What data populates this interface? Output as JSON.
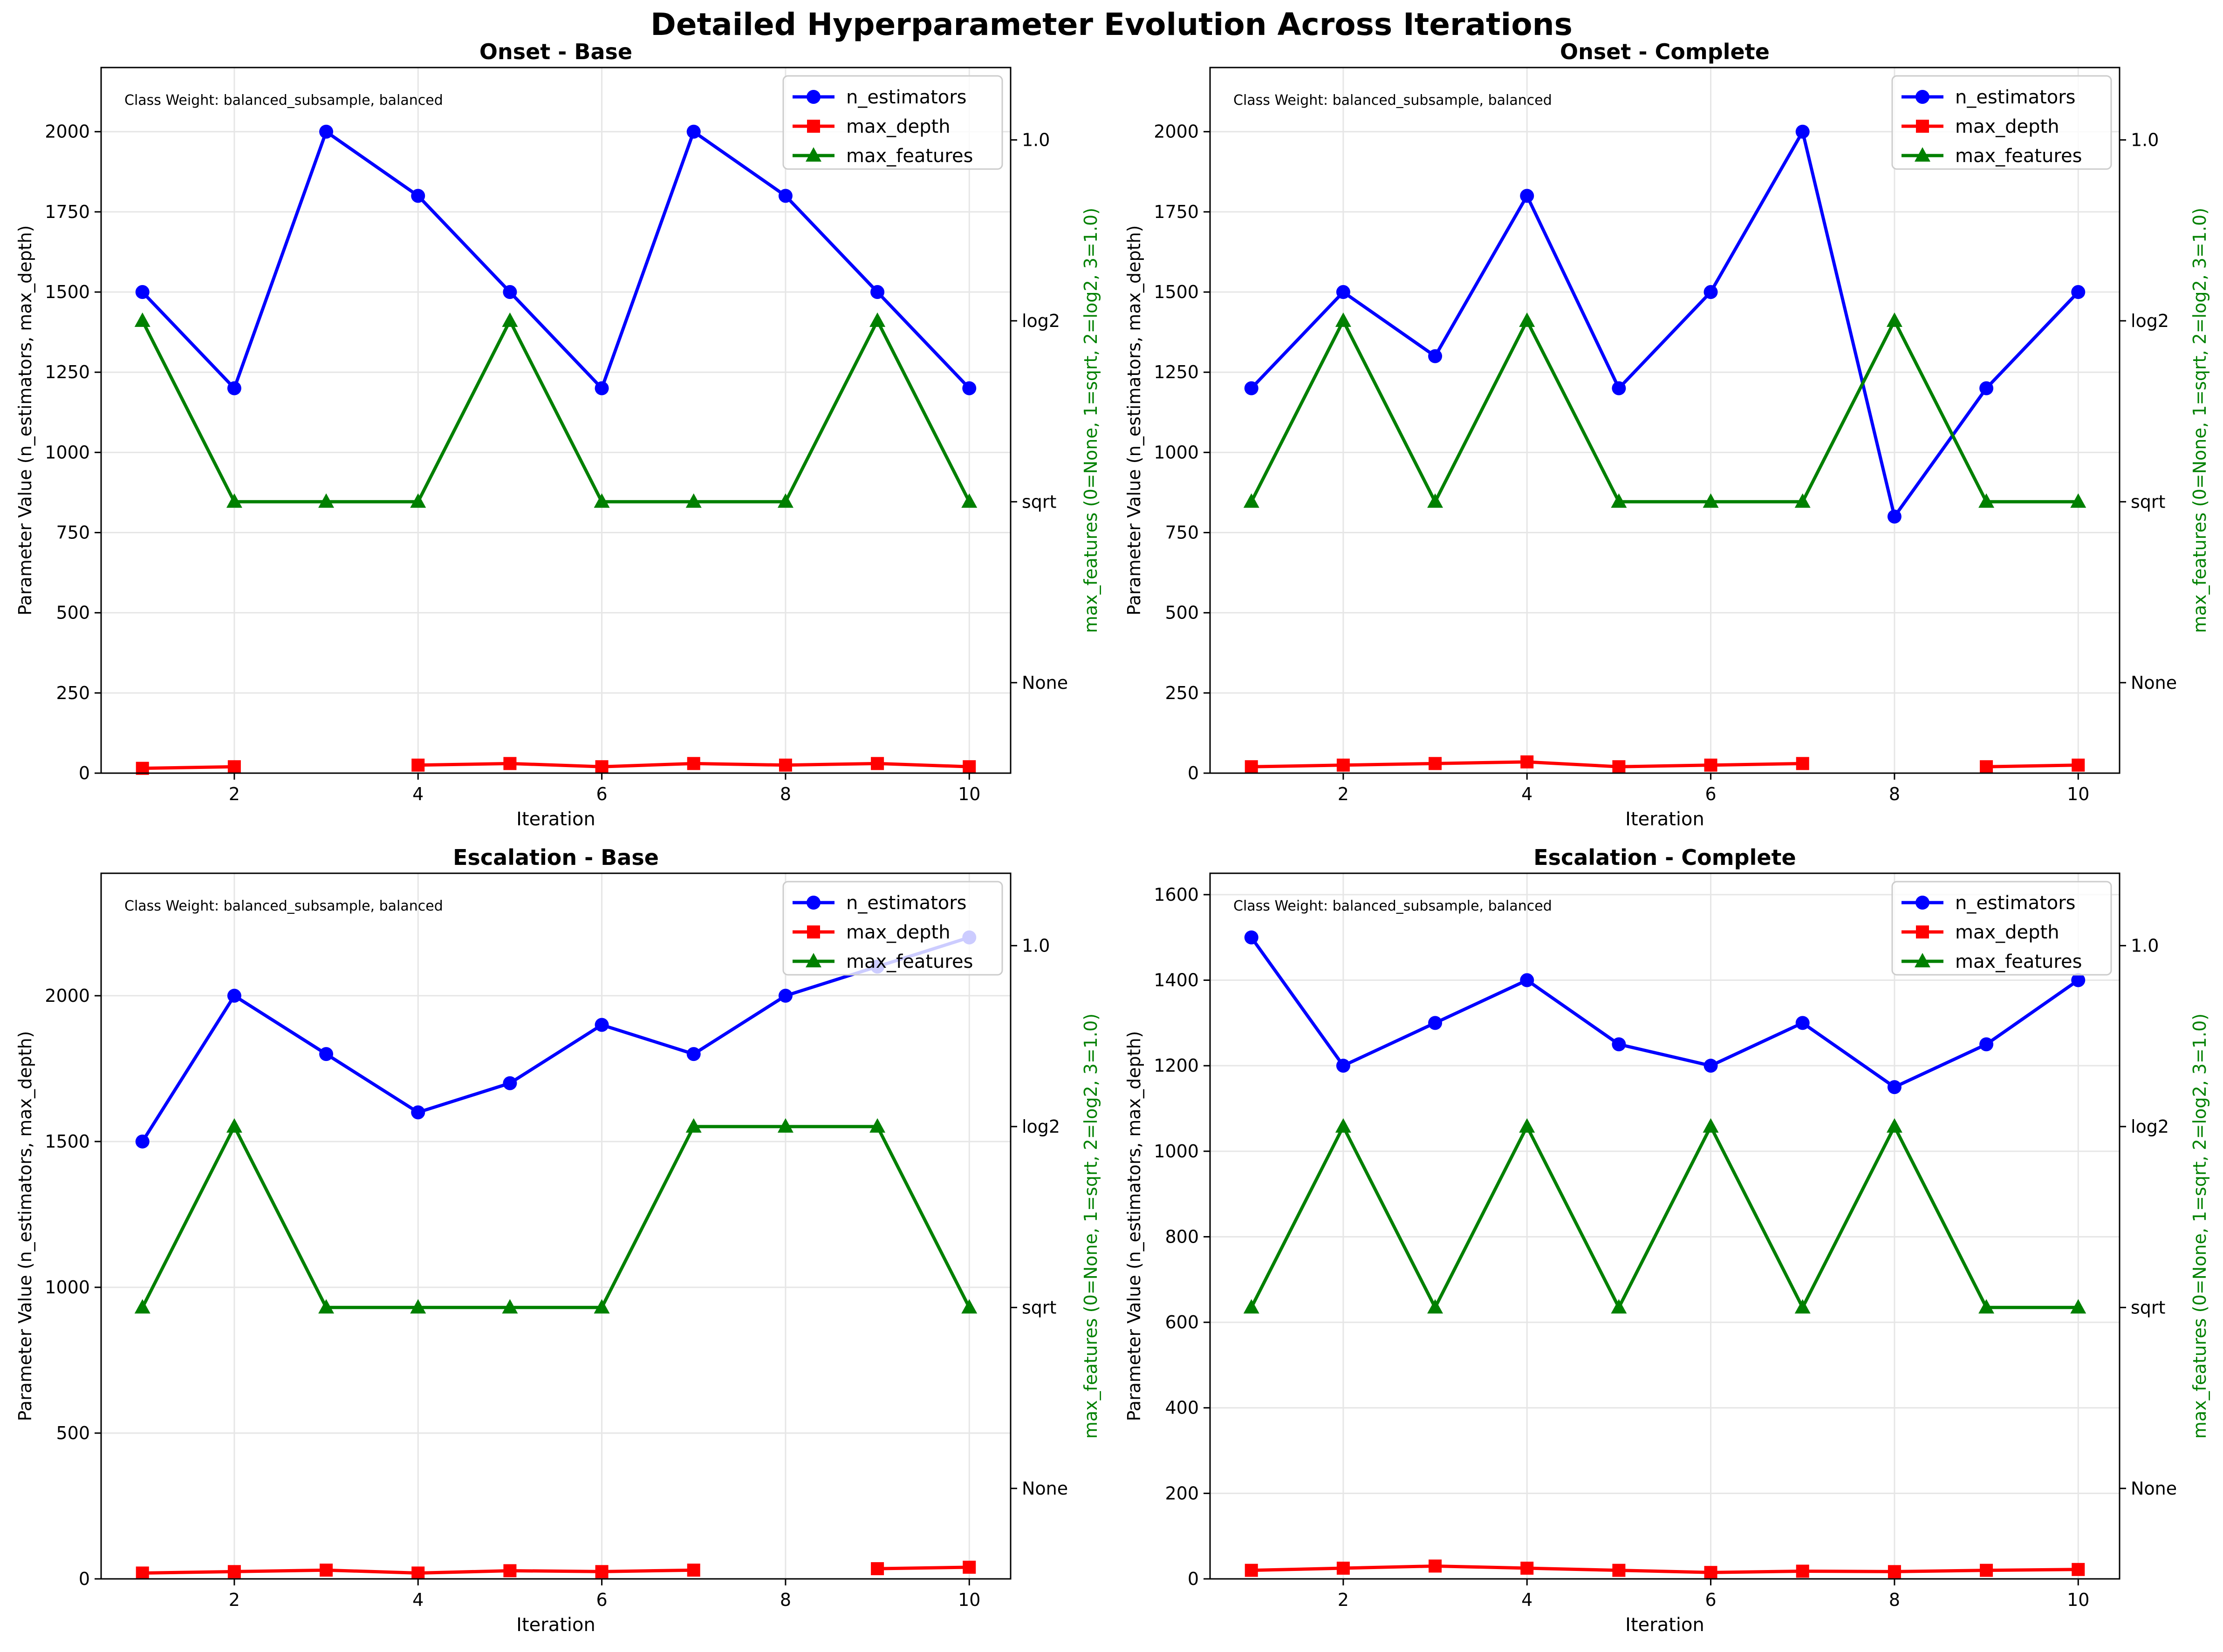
{
  "figure": {
    "title": "Detailed Hyperparameter Evolution Across Iterations"
  },
  "colors": {
    "n_estimators": "#0000ff",
    "max_depth": "#ff0000",
    "max_features": "#008000",
    "grid": "#e6e6e6"
  },
  "chart_data": [
    {
      "type": "line",
      "title": "Onset - Base",
      "xlabel": "Iteration",
      "ylabel": "Parameter Value (n_estimators, max_depth)",
      "y2label": "max_features (0=None, 1=sqrt, 2=log2, 3=1.0)",
      "annotation": "Class Weight: balanced_subsample, balanced",
      "xlim": [
        0.55,
        10.45
      ],
      "ylim": [
        0,
        2200
      ],
      "y2lim": [
        -0.5,
        3.4
      ],
      "xticks": [
        2,
        4,
        6,
        8,
        10
      ],
      "yticks": [
        0,
        250,
        500,
        750,
        1000,
        1250,
        1500,
        1750,
        2000
      ],
      "y2ticks": [
        0,
        1,
        2,
        3
      ],
      "y2ticklabels": [
        "None",
        "sqrt",
        "log2",
        "1.0"
      ],
      "grid": true,
      "legend": "upper right",
      "x": [
        1,
        2,
        3,
        4,
        5,
        6,
        7,
        8,
        9,
        10
      ],
      "series": [
        {
          "name": "n_estimators",
          "marker": "circle",
          "axis": "left",
          "values": [
            1500,
            1200,
            2000,
            1800,
            1500,
            1200,
            2000,
            1800,
            1500,
            1200
          ]
        },
        {
          "name": "max_depth",
          "marker": "square",
          "axis": "left",
          "values": [
            15,
            20,
            null,
            25,
            30,
            20,
            30,
            25,
            30,
            20
          ]
        },
        {
          "name": "max_features",
          "marker": "triangle",
          "axis": "right",
          "values": [
            2,
            1,
            1,
            1,
            2,
            1,
            1,
            1,
            2,
            1
          ]
        }
      ]
    },
    {
      "type": "line",
      "title": "Onset - Complete",
      "xlabel": "Iteration",
      "ylabel": "Parameter Value (n_estimators, max_depth)",
      "y2label": "max_features (0=None, 1=sqrt, 2=log2, 3=1.0)",
      "annotation": "Class Weight: balanced_subsample, balanced",
      "xlim": [
        0.55,
        10.45
      ],
      "ylim": [
        0,
        2200
      ],
      "y2lim": [
        -0.5,
        3.4
      ],
      "xticks": [
        2,
        4,
        6,
        8,
        10
      ],
      "yticks": [
        0,
        250,
        500,
        750,
        1000,
        1250,
        1500,
        1750,
        2000
      ],
      "y2ticks": [
        0,
        1,
        2,
        3
      ],
      "y2ticklabels": [
        "None",
        "sqrt",
        "log2",
        "1.0"
      ],
      "grid": true,
      "legend": "upper right",
      "x": [
        1,
        2,
        3,
        4,
        5,
        6,
        7,
        8,
        9,
        10
      ],
      "series": [
        {
          "name": "n_estimators",
          "marker": "circle",
          "axis": "left",
          "values": [
            1200,
            1500,
            1300,
            1800,
            1200,
            1500,
            2000,
            800,
            1200,
            1500
          ]
        },
        {
          "name": "max_depth",
          "marker": "square",
          "axis": "left",
          "values": [
            20,
            25,
            30,
            35,
            20,
            25,
            30,
            null,
            20,
            25
          ]
        },
        {
          "name": "max_features",
          "marker": "triangle",
          "axis": "right",
          "values": [
            1,
            2,
            1,
            2,
            1,
            1,
            1,
            2,
            1,
            1
          ]
        }
      ]
    },
    {
      "type": "line",
      "title": "Escalation - Base",
      "xlabel": "Iteration",
      "ylabel": "Parameter Value (n_estimators, max_depth)",
      "y2label": "max_features (0=None, 1=sqrt, 2=log2, 3=1.0)",
      "annotation": "Class Weight: balanced_subsample, balanced",
      "xlim": [
        0.55,
        10.45
      ],
      "ylim": [
        0,
        2420
      ],
      "y2lim": [
        -0.5,
        3.4
      ],
      "xticks": [
        2,
        4,
        6,
        8,
        10
      ],
      "yticks": [
        0,
        500,
        1000,
        1500,
        2000
      ],
      "y2ticks": [
        0,
        1,
        2,
        3
      ],
      "y2ticklabels": [
        "None",
        "sqrt",
        "log2",
        "1.0"
      ],
      "grid": true,
      "legend": "upper right",
      "x": [
        1,
        2,
        3,
        4,
        5,
        6,
        7,
        8,
        9,
        10
      ],
      "series": [
        {
          "name": "n_estimators",
          "marker": "circle",
          "axis": "left",
          "values": [
            1500,
            2000,
            1800,
            1600,
            1700,
            1900,
            1800,
            2000,
            2100,
            2200
          ]
        },
        {
          "name": "max_depth",
          "marker": "square",
          "axis": "left",
          "values": [
            20,
            25,
            30,
            20,
            28,
            25,
            30,
            null,
            35,
            40
          ]
        },
        {
          "name": "max_features",
          "marker": "triangle",
          "axis": "right",
          "values": [
            1,
            2,
            1,
            1,
            1,
            1,
            2,
            2,
            2,
            1
          ]
        }
      ]
    },
    {
      "type": "line",
      "title": "Escalation - Complete",
      "xlabel": "Iteration",
      "ylabel": "Parameter Value (n_estimators, max_depth)",
      "y2label": "max_features (0=None, 1=sqrt, 2=log2, 3=1.0)",
      "annotation": "Class Weight: balanced_subsample, balanced",
      "xlim": [
        0.55,
        10.45
      ],
      "ylim": [
        0,
        1650
      ],
      "y2lim": [
        -0.5,
        3.4
      ],
      "xticks": [
        2,
        4,
        6,
        8,
        10
      ],
      "yticks": [
        0,
        200,
        400,
        600,
        800,
        1000,
        1200,
        1400,
        1600
      ],
      "y2ticks": [
        0,
        1,
        2,
        3
      ],
      "y2ticklabels": [
        "None",
        "sqrt",
        "log2",
        "1.0"
      ],
      "grid": true,
      "legend": "upper right",
      "x": [
        1,
        2,
        3,
        4,
        5,
        6,
        7,
        8,
        9,
        10
      ],
      "series": [
        {
          "name": "n_estimators",
          "marker": "circle",
          "axis": "left",
          "values": [
            1500,
            1200,
            1300,
            1400,
            1250,
            1200,
            1300,
            1150,
            1250,
            1400
          ]
        },
        {
          "name": "max_depth",
          "marker": "square",
          "axis": "left",
          "values": [
            20,
            25,
            30,
            25,
            20,
            15,
            18,
            17,
            20,
            22
          ]
        },
        {
          "name": "max_features",
          "marker": "triangle",
          "axis": "right",
          "values": [
            1,
            2,
            1,
            2,
            1,
            2,
            1,
            2,
            1,
            1
          ]
        }
      ]
    }
  ]
}
